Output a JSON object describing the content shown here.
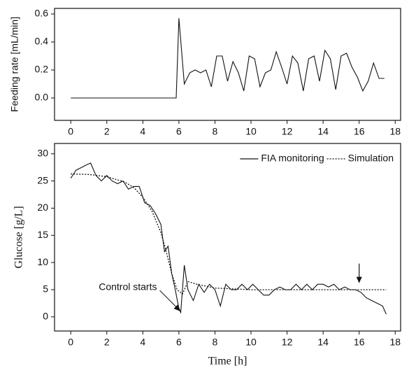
{
  "chart_data": [
    {
      "type": "line",
      "y_label": "Feeding rate [mL/min]",
      "xlim": [
        -0.9,
        18.3
      ],
      "ylim": [
        -0.16,
        0.64
      ],
      "xticks": [
        0,
        2,
        4,
        6,
        8,
        10,
        12,
        14,
        16,
        18
      ],
      "yticks": [
        {
          "value": 0,
          "label": "0.0"
        },
        0.2,
        0.4,
        0.6
      ],
      "series": [
        {
          "name": null,
          "color": "#111111",
          "style": "solid",
          "x": [
            0,
            5.85,
            6.0,
            6.3,
            6.6,
            6.9,
            7.2,
            7.5,
            7.8,
            8.1,
            8.4,
            8.7,
            9.0,
            9.3,
            9.6,
            9.9,
            10.2,
            10.5,
            10.8,
            11.1,
            11.4,
            11.7,
            12.0,
            12.3,
            12.6,
            12.9,
            13.2,
            13.5,
            13.8,
            14.1,
            14.4,
            14.7,
            15.0,
            15.3,
            15.6,
            15.9,
            16.2,
            16.5,
            16.8,
            17.1,
            17.4
          ],
          "values": [
            0,
            0,
            0.57,
            0.1,
            0.18,
            0.2,
            0.18,
            0.2,
            0.08,
            0.3,
            0.3,
            0.12,
            0.26,
            0.18,
            0.05,
            0.3,
            0.28,
            0.08,
            0.18,
            0.2,
            0.33,
            0.22,
            0.1,
            0.3,
            0.25,
            0.05,
            0.28,
            0.3,
            0.12,
            0.34,
            0.28,
            0.06,
            0.3,
            0.32,
            0.22,
            0.15,
            0.05,
            0.12,
            0.25,
            0.14,
            0.14
          ]
        }
      ]
    },
    {
      "type": "line",
      "x_label": "Time [h]",
      "y_label": "Glucose [g/L]",
      "xlim": [
        -0.9,
        18.3
      ],
      "ylim": [
        -2.6,
        31.9
      ],
      "xticks": [
        0,
        2,
        4,
        6,
        8,
        10,
        12,
        14,
        16,
        18
      ],
      "yticks": [
        0,
        5,
        10,
        15,
        20,
        25,
        30
      ],
      "legend": "top-right",
      "annotations": [
        {
          "text": "Control starts",
          "x": 6.1,
          "y": 1
        }
      ],
      "markers": [
        {
          "x": 16,
          "y": 6.2
        }
      ],
      "series": [
        {
          "name": "FIA monitoring",
          "color": "#111111",
          "style": "solid",
          "x": [
            0,
            0.3,
            0.6,
            0.9,
            1.1,
            1.4,
            1.7,
            2.0,
            2.3,
            2.6,
            2.9,
            3.2,
            3.5,
            3.8,
            4.1,
            4.4,
            4.7,
            5.0,
            5.2,
            5.4,
            5.6,
            5.8,
            6.0,
            6.1,
            6.3,
            6.5,
            6.8,
            7.1,
            7.4,
            7.7,
            8.0,
            8.3,
            8.6,
            8.9,
            9.2,
            9.5,
            9.8,
            10.1,
            10.4,
            10.7,
            11.0,
            11.3,
            11.6,
            11.9,
            12.2,
            12.5,
            12.8,
            13.1,
            13.4,
            13.7,
            14.0,
            14.3,
            14.6,
            14.9,
            15.2,
            15.5,
            15.8,
            16.1,
            16.4,
            16.7,
            17.0,
            17.3,
            17.5
          ],
          "values": [
            25.5,
            27,
            27.5,
            28,
            28.3,
            26,
            25,
            26,
            25,
            24.5,
            25,
            23.5,
            24,
            24,
            21,
            20.5,
            19,
            17,
            12,
            13,
            8,
            5,
            1.5,
            0.8,
            9.5,
            5,
            3,
            6,
            4.5,
            6,
            5,
            2,
            6,
            5,
            5,
            6,
            5,
            6,
            5,
            4,
            4,
            5,
            5.5,
            5,
            5,
            6,
            5,
            6,
            5,
            6,
            6,
            5.5,
            6,
            5,
            5.5,
            5,
            5,
            4.5,
            3.5,
            3,
            2.5,
            2,
            0.5
          ]
        },
        {
          "name": "Simulation",
          "color": "#111111",
          "style": "dotted",
          "x": [
            0,
            1,
            2,
            3,
            3.5,
            4,
            4.5,
            5,
            5.3,
            5.6,
            5.9,
            6.2,
            6.5,
            7,
            8,
            10,
            12,
            14,
            16,
            17.5
          ],
          "values": [
            26.3,
            26.2,
            25.8,
            24.8,
            23.8,
            22,
            19.5,
            15.5,
            12,
            8,
            5,
            4.2,
            6.5,
            6,
            5.3,
            5,
            5,
            5,
            5,
            5
          ]
        }
      ]
    }
  ]
}
